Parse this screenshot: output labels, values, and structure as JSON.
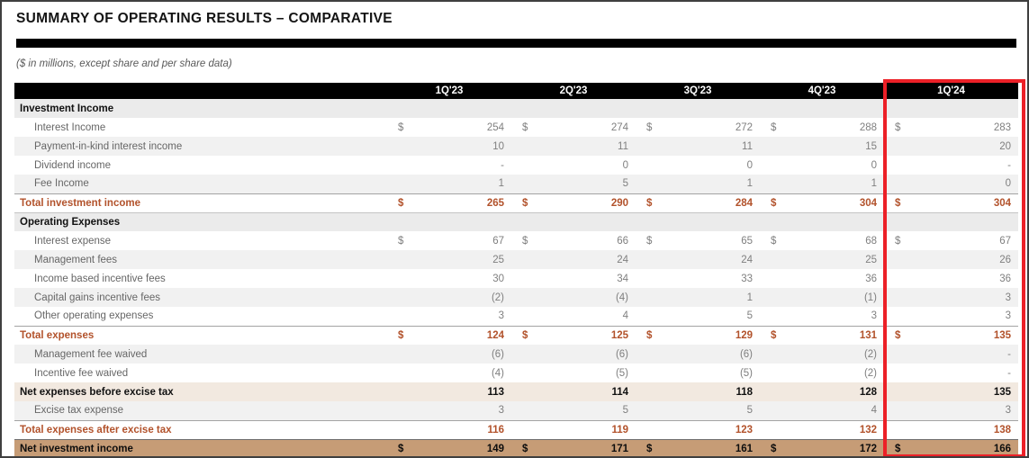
{
  "page": {
    "title": "SUMMARY OF OPERATING RESULTS – COMPARATIVE",
    "units_note": "($ in millions, except share and per share data)"
  },
  "colors": {
    "accent_total_text": "#B2522B",
    "highlight_border": "#EC2027",
    "net_income_row_bg": "#C69C76",
    "subtotal_row_bg": "#F2E9E0",
    "section_row_bg": "#EBEBEB",
    "alt_row_bg": "#F1F1F1",
    "header_row_bg": "#000000"
  },
  "table": {
    "columns": [
      "1Q'23",
      "2Q'23",
      "3Q'23",
      "4Q'23",
      "1Q'24"
    ],
    "highlighted_column": "1Q'24",
    "rows": [
      {
        "label": "Investment Income",
        "type": "section",
        "dollar": false,
        "values": [
          "",
          "",
          "",
          "",
          ""
        ]
      },
      {
        "label": "Interest Income",
        "type": "data",
        "dollar": true,
        "values": [
          "254",
          "274",
          "272",
          "288",
          "283"
        ]
      },
      {
        "label": "Payment-in-kind interest income",
        "type": "data-alt",
        "dollar": false,
        "values": [
          "10",
          "11",
          "11",
          "15",
          "20"
        ]
      },
      {
        "label": "Dividend income",
        "type": "data",
        "dollar": false,
        "values": [
          "-",
          "0",
          "0",
          "0",
          "-"
        ]
      },
      {
        "label": "Fee Income",
        "type": "data-alt",
        "dollar": false,
        "values": [
          "1",
          "5",
          "1",
          "1",
          "0"
        ]
      },
      {
        "label": "Total investment income",
        "type": "total",
        "dollar": true,
        "values": [
          "265",
          "290",
          "284",
          "304",
          "304"
        ]
      },
      {
        "label": "Operating Expenses",
        "type": "section-2",
        "dollar": false,
        "values": [
          "",
          "",
          "",
          "",
          ""
        ]
      },
      {
        "label": "Interest expense",
        "type": "data",
        "dollar": true,
        "values": [
          "67",
          "66",
          "65",
          "68",
          "67"
        ]
      },
      {
        "label": "Management fees",
        "type": "data-alt",
        "dollar": false,
        "values": [
          "25",
          "24",
          "24",
          "25",
          "26"
        ]
      },
      {
        "label": "Income based incentive fees",
        "type": "data",
        "dollar": false,
        "values": [
          "30",
          "34",
          "33",
          "36",
          "36"
        ]
      },
      {
        "label": "Capital gains incentive fees",
        "type": "data-alt",
        "dollar": false,
        "values": [
          "(2)",
          "(4)",
          "1",
          "(1)",
          "3"
        ]
      },
      {
        "label": "Other operating expenses",
        "type": "data",
        "dollar": false,
        "values": [
          "3",
          "4",
          "5",
          "3",
          "3"
        ]
      },
      {
        "label": "Total expenses",
        "type": "total",
        "dollar": true,
        "values": [
          "124",
          "125",
          "129",
          "131",
          "135"
        ]
      },
      {
        "label": "Management fee waived",
        "type": "data-alt",
        "dollar": false,
        "values": [
          "(6)",
          "(6)",
          "(6)",
          "(2)",
          "-"
        ]
      },
      {
        "label": "Incentive fee waived",
        "type": "data",
        "dollar": false,
        "values": [
          "(4)",
          "(5)",
          "(5)",
          "(2)",
          "-"
        ]
      },
      {
        "label": "Net expenses before excise tax",
        "type": "beige",
        "dollar": false,
        "values": [
          "113",
          "114",
          "118",
          "128",
          "135"
        ]
      },
      {
        "label": "Excise tax expense",
        "type": "data-alt",
        "dollar": false,
        "values": [
          "3",
          "5",
          "5",
          "4",
          "3"
        ]
      },
      {
        "label": "Total expenses after excise tax",
        "type": "total",
        "dollar": false,
        "values": [
          "116",
          "119",
          "123",
          "132",
          "138"
        ]
      },
      {
        "label": "Net investment income",
        "type": "net",
        "dollar": true,
        "values": [
          "149",
          "171",
          "161",
          "172",
          "166"
        ]
      }
    ]
  }
}
